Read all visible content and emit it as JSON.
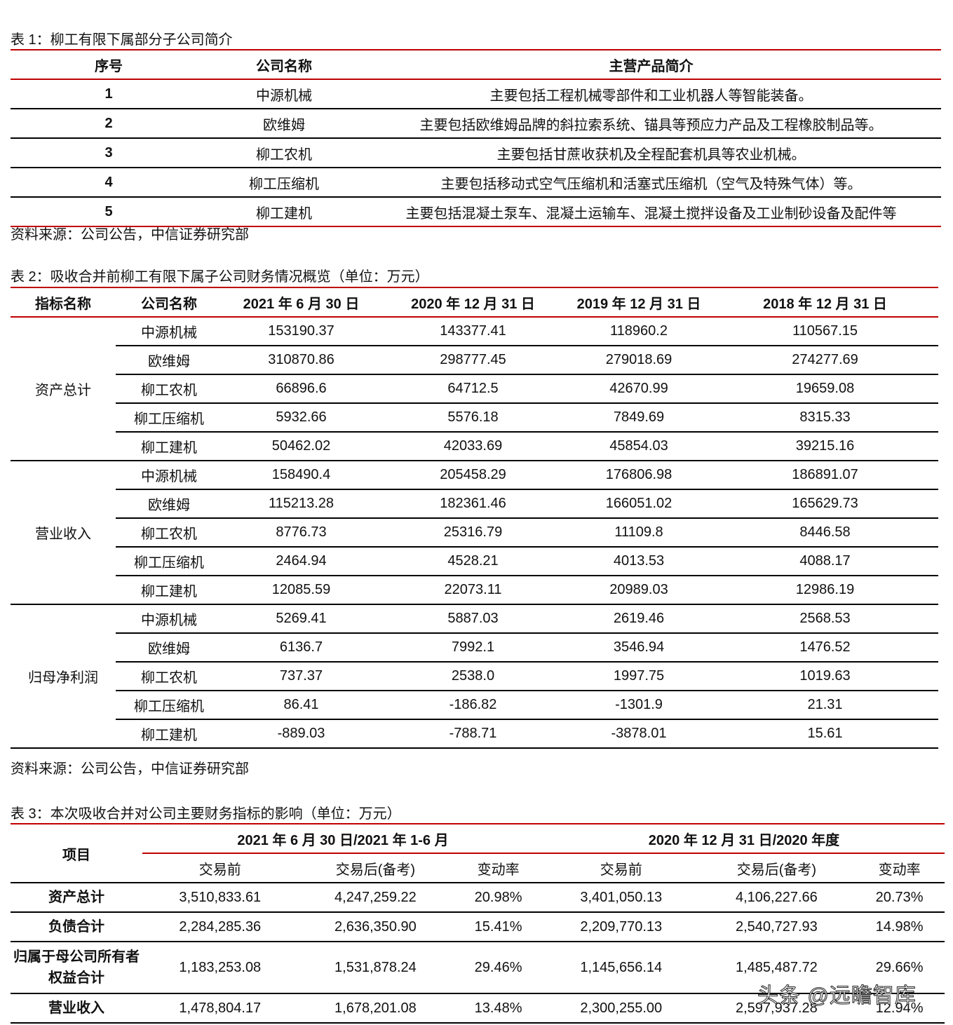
{
  "t1": {
    "caption": "表 1：柳工有限下属部分子公司简介",
    "headers": [
      "序号",
      "公司名称",
      "主营产品简介"
    ],
    "rows": [
      [
        "1",
        "中源机械",
        "主要包括工程机械零部件和工业机器人等智能装备。"
      ],
      [
        "2",
        "欧维姆",
        "主要包括欧维姆品牌的斜拉索系统、锚具等预应力产品及工程橡胶制品等。"
      ],
      [
        "3",
        "柳工农机",
        "主要包括甘蔗收获机及全程配套机具等农业机械。"
      ],
      [
        "4",
        "柳工压缩机",
        "主要包括移动式空气压缩机和活塞式压缩机（空气及特殊气体）等。"
      ],
      [
        "5",
        "柳工建机",
        "主要包括混凝土泵车、混凝土运输车、混凝土搅拌设备及工业制砂设备及配件等"
      ]
    ],
    "source": "资料来源：公司公告，中信证券研究部"
  },
  "t2": {
    "caption": "表 2：吸收合并前柳工有限下属子公司财务情况概览（单位：万元）",
    "headers": [
      "指标名称",
      "公司名称",
      "2021 年 6 月 30 日",
      "2020 年 12 月 31 日",
      "2019 年 12 月 31 日",
      "2018 年 12 月 31 日"
    ],
    "groups": [
      {
        "name": "资产总计",
        "rows": [
          [
            "中源机械",
            "153190.37",
            "143377.41",
            "118960.2",
            "110567.15"
          ],
          [
            "欧维姆",
            "310870.86",
            "298777.45",
            "279018.69",
            "274277.69"
          ],
          [
            "柳工农机",
            "66896.6",
            "64712.5",
            "42670.99",
            "19659.08"
          ],
          [
            "柳工压缩机",
            "5932.66",
            "5576.18",
            "7849.69",
            "8315.33"
          ],
          [
            "柳工建机",
            "50462.02",
            "42033.69",
            "45854.03",
            "39215.16"
          ]
        ]
      },
      {
        "name": "营业收入",
        "rows": [
          [
            "中源机械",
            "158490.4",
            "205458.29",
            "176806.98",
            "186891.07"
          ],
          [
            "欧维姆",
            "115213.28",
            "182361.46",
            "166051.02",
            "165629.73"
          ],
          [
            "柳工农机",
            "8776.73",
            "25316.79",
            "11109.8",
            "8446.58"
          ],
          [
            "柳工压缩机",
            "2464.94",
            "4528.21",
            "4013.53",
            "4088.17"
          ],
          [
            "柳工建机",
            "12085.59",
            "22073.11",
            "20989.03",
            "12986.19"
          ]
        ]
      },
      {
        "name": "归母净利润",
        "rows": [
          [
            "中源机械",
            "5269.41",
            "5887.03",
            "2619.46",
            "2568.53"
          ],
          [
            "欧维姆",
            "6136.7",
            "7992.1",
            "3546.94",
            "1476.52"
          ],
          [
            "柳工农机",
            "737.37",
            "2538.0",
            "1997.75",
            "1019.63"
          ],
          [
            "柳工压缩机",
            "86.41",
            "-186.82",
            "-1301.9",
            "21.31"
          ],
          [
            "柳工建机",
            "-889.03",
            "-788.71",
            "-3878.01",
            "15.61"
          ]
        ]
      }
    ],
    "source": "资料来源：公司公告，中信证券研究部"
  },
  "t3": {
    "caption": "表 3：本次吸收合并对公司主要财务指标的影响（单位：万元）",
    "item": "项目",
    "period1": "2021 年 6 月 30 日/2021 年 1-6 月",
    "period2": "2020 年 12 月 31 日/2020 年度",
    "sub": [
      "交易前",
      "交易后(备考)",
      "变动率",
      "交易前",
      "交易后(备考)",
      "变动率"
    ],
    "rows": [
      [
        "资产总计",
        "3,510,833.61",
        "4,247,259.22",
        "20.98%",
        "3,401,050.13",
        "4,106,227.66",
        "20.73%"
      ],
      [
        "负债合计",
        "2,284,285.36",
        "2,636,350.90",
        "15.41%",
        "2,209,770.13",
        "2,540,727.93",
        "14.98%"
      ],
      [
        "归属于母公司所有者权益合计",
        "1,183,253.08",
        "1,531,878.24",
        "29.46%",
        "1,145,656.14",
        "1,485,487.72",
        "29.66%"
      ],
      [
        "营业收入",
        "1,478,804.17",
        "1,678,201.08",
        "13.48%",
        "2,300,255.00",
        "2,597,937.28",
        "12.94%"
      ]
    ]
  },
  "watermark": "头条 @远瞻智库"
}
